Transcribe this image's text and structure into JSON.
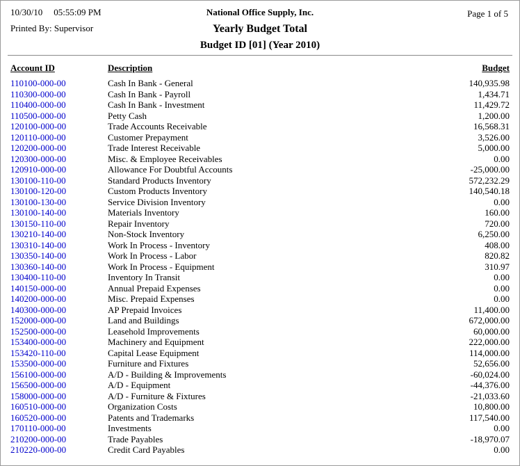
{
  "header": {
    "date": "10/30/10",
    "time": "05:55:09 PM",
    "printed_by": "Printed By: Supervisor",
    "company": "National Office Supply, Inc.",
    "title": "Yearly Budget Total",
    "subtitle": "Budget ID [01] (Year 2010)",
    "page": "Page 1 of 5"
  },
  "colors": {
    "account_link": "#0000cc",
    "text": "#000000",
    "rule": "#888888"
  },
  "table": {
    "columns": [
      "Account ID",
      "Description",
      "Budget"
    ],
    "rows": [
      {
        "account_id": "110100-000-00",
        "description": "Cash In Bank - General",
        "budget": "140,935.98"
      },
      {
        "account_id": "110300-000-00",
        "description": "Cash In Bank - Payroll",
        "budget": "1,434.71"
      },
      {
        "account_id": "110400-000-00",
        "description": "Cash In Bank - Investment",
        "budget": "11,429.72"
      },
      {
        "account_id": "110500-000-00",
        "description": "Petty Cash",
        "budget": "1,200.00"
      },
      {
        "account_id": "120100-000-00",
        "description": "Trade Accounts Receivable",
        "budget": "16,568.31"
      },
      {
        "account_id": "120110-000-00",
        "description": "Customer Prepayment",
        "budget": "3,526.00"
      },
      {
        "account_id": "120200-000-00",
        "description": "Trade Interest Receivable",
        "budget": "5,000.00"
      },
      {
        "account_id": "120300-000-00",
        "description": "Misc. & Employee Receivables",
        "budget": "0.00"
      },
      {
        "account_id": "120910-000-00",
        "description": "Allowance For Doubtful Accounts",
        "budget": "-25,000.00"
      },
      {
        "account_id": "130100-110-00",
        "description": "Standard Products Inventory",
        "budget": "572,232.29"
      },
      {
        "account_id": "130100-120-00",
        "description": "Custom Products Inventory",
        "budget": "140,540.18"
      },
      {
        "account_id": "130100-130-00",
        "description": "Service Division Inventory",
        "budget": "0.00"
      },
      {
        "account_id": "130100-140-00",
        "description": "Materials Inventory",
        "budget": "160.00"
      },
      {
        "account_id": "130150-110-00",
        "description": "Repair Inventory",
        "budget": "720.00"
      },
      {
        "account_id": "130210-140-00",
        "description": "Non-Stock Inventory",
        "budget": "6,250.00"
      },
      {
        "account_id": "130310-140-00",
        "description": "Work In Process - Inventory",
        "budget": "408.00"
      },
      {
        "account_id": "130350-140-00",
        "description": "Work In Process - Labor",
        "budget": "820.82"
      },
      {
        "account_id": "130360-140-00",
        "description": "Work In Process - Equipment",
        "budget": "310.97"
      },
      {
        "account_id": "130400-110-00",
        "description": "Inventory In Transit",
        "budget": "0.00"
      },
      {
        "account_id": "140150-000-00",
        "description": "Annual Prepaid Expenses",
        "budget": "0.00"
      },
      {
        "account_id": "140200-000-00",
        "description": "Misc. Prepaid Expenses",
        "budget": "0.00"
      },
      {
        "account_id": "140300-000-00",
        "description": "AP Prepaid Invoices",
        "budget": "11,400.00"
      },
      {
        "account_id": "152000-000-00",
        "description": "Land and Buildings",
        "budget": "672,000.00"
      },
      {
        "account_id": "152500-000-00",
        "description": "Leasehold Improvements",
        "budget": "60,000.00"
      },
      {
        "account_id": "153400-000-00",
        "description": "Machinery and Equipment",
        "budget": "222,000.00"
      },
      {
        "account_id": "153420-110-00",
        "description": "Capital Lease Equipment",
        "budget": "114,000.00"
      },
      {
        "account_id": "153500-000-00",
        "description": "Furniture and Fixtures",
        "budget": "52,656.00"
      },
      {
        "account_id": "156100-000-00",
        "description": "A/D - Building & Improvements",
        "budget": "-60,024.00"
      },
      {
        "account_id": "156500-000-00",
        "description": "A/D - Equipment",
        "budget": "-44,376.00"
      },
      {
        "account_id": "158000-000-00",
        "description": "A/D - Furniture & Fixtures",
        "budget": "-21,033.60"
      },
      {
        "account_id": "160510-000-00",
        "description": "Organization Costs",
        "budget": "10,800.00"
      },
      {
        "account_id": "160520-000-00",
        "description": "Patents and Trademarks",
        "budget": "117,540.00"
      },
      {
        "account_id": "170110-000-00",
        "description": "Investments",
        "budget": "0.00"
      },
      {
        "account_id": "210200-000-00",
        "description": "Trade Payables",
        "budget": "-18,970.07"
      },
      {
        "account_id": "210220-000-00",
        "description": "Credit Card Payables",
        "budget": "0.00"
      }
    ]
  }
}
